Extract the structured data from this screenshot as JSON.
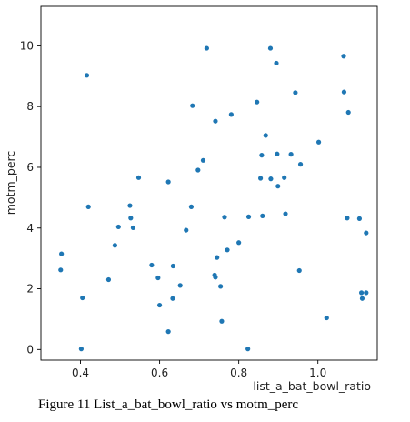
{
  "caption": "Figure 11 List_a_bat_bowl_ratio vs motm_perc",
  "chart_data": {
    "type": "scatter",
    "xlabel": "list_a_bat_bowl_ratio",
    "ylabel": "motm_perc",
    "xlim": [
      0.3,
      1.15
    ],
    "ylim": [
      -0.35,
      11.3
    ],
    "xticks": [
      0.4,
      0.6,
      0.8,
      1.0
    ],
    "xtick_labels": [
      "0.4",
      "0.6",
      "0.8",
      "1.0"
    ],
    "yticks": [
      0,
      2,
      4,
      6,
      8,
      10
    ],
    "ytick_labels": [
      "0",
      "2",
      "4",
      "6",
      "8",
      "10"
    ],
    "grid": false,
    "point_color": "#1f77b4",
    "points": [
      {
        "x": 0.352,
        "y": 3.15
      },
      {
        "x": 0.35,
        "y": 2.62
      },
      {
        "x": 0.405,
        "y": 1.7
      },
      {
        "x": 0.402,
        "y": 0.02
      },
      {
        "x": 0.416,
        "y": 9.03
      },
      {
        "x": 0.42,
        "y": 4.7
      },
      {
        "x": 0.471,
        "y": 2.3
      },
      {
        "x": 0.487,
        "y": 3.43
      },
      {
        "x": 0.496,
        "y": 4.04
      },
      {
        "x": 0.525,
        "y": 4.74
      },
      {
        "x": 0.527,
        "y": 4.33
      },
      {
        "x": 0.533,
        "y": 4.01
      },
      {
        "x": 0.547,
        "y": 5.66
      },
      {
        "x": 0.58,
        "y": 2.78
      },
      {
        "x": 0.596,
        "y": 2.36
      },
      {
        "x": 0.6,
        "y": 1.46
      },
      {
        "x": 0.622,
        "y": 5.52
      },
      {
        "x": 0.622,
        "y": 0.59
      },
      {
        "x": 0.633,
        "y": 1.68
      },
      {
        "x": 0.634,
        "y": 2.75
      },
      {
        "x": 0.652,
        "y": 2.11
      },
      {
        "x": 0.667,
        "y": 3.93
      },
      {
        "x": 0.68,
        "y": 4.7
      },
      {
        "x": 0.683,
        "y": 8.03
      },
      {
        "x": 0.697,
        "y": 5.91
      },
      {
        "x": 0.71,
        "y": 6.23
      },
      {
        "x": 0.719,
        "y": 9.92
      },
      {
        "x": 0.739,
        "y": 2.45
      },
      {
        "x": 0.741,
        "y": 2.38
      },
      {
        "x": 0.741,
        "y": 7.52
      },
      {
        "x": 0.745,
        "y": 3.03
      },
      {
        "x": 0.754,
        "y": 2.08
      },
      {
        "x": 0.757,
        "y": 0.93
      },
      {
        "x": 0.764,
        "y": 4.36
      },
      {
        "x": 0.771,
        "y": 3.28
      },
      {
        "x": 0.781,
        "y": 7.74
      },
      {
        "x": 0.8,
        "y": 3.52
      },
      {
        "x": 0.823,
        "y": 0.02
      },
      {
        "x": 0.825,
        "y": 4.37
      },
      {
        "x": 0.846,
        "y": 8.15
      },
      {
        "x": 0.855,
        "y": 5.64
      },
      {
        "x": 0.858,
        "y": 6.4
      },
      {
        "x": 0.86,
        "y": 4.4
      },
      {
        "x": 0.868,
        "y": 7.05
      },
      {
        "x": 0.88,
        "y": 9.92
      },
      {
        "x": 0.881,
        "y": 5.62
      },
      {
        "x": 0.895,
        "y": 9.43
      },
      {
        "x": 0.897,
        "y": 6.44
      },
      {
        "x": 0.899,
        "y": 5.38
      },
      {
        "x": 0.915,
        "y": 5.66
      },
      {
        "x": 0.918,
        "y": 4.47
      },
      {
        "x": 0.932,
        "y": 6.43
      },
      {
        "x": 0.943,
        "y": 8.46
      },
      {
        "x": 0.953,
        "y": 2.6
      },
      {
        "x": 0.956,
        "y": 6.1
      },
      {
        "x": 1.002,
        "y": 6.83
      },
      {
        "x": 1.022,
        "y": 1.04
      },
      {
        "x": 1.065,
        "y": 9.66
      },
      {
        "x": 1.066,
        "y": 8.48
      },
      {
        "x": 1.074,
        "y": 4.33
      },
      {
        "x": 1.077,
        "y": 7.81
      },
      {
        "x": 1.105,
        "y": 4.31
      },
      {
        "x": 1.11,
        "y": 1.87
      },
      {
        "x": 1.112,
        "y": 1.68
      },
      {
        "x": 1.122,
        "y": 1.87
      },
      {
        "x": 1.122,
        "y": 3.84
      }
    ]
  }
}
